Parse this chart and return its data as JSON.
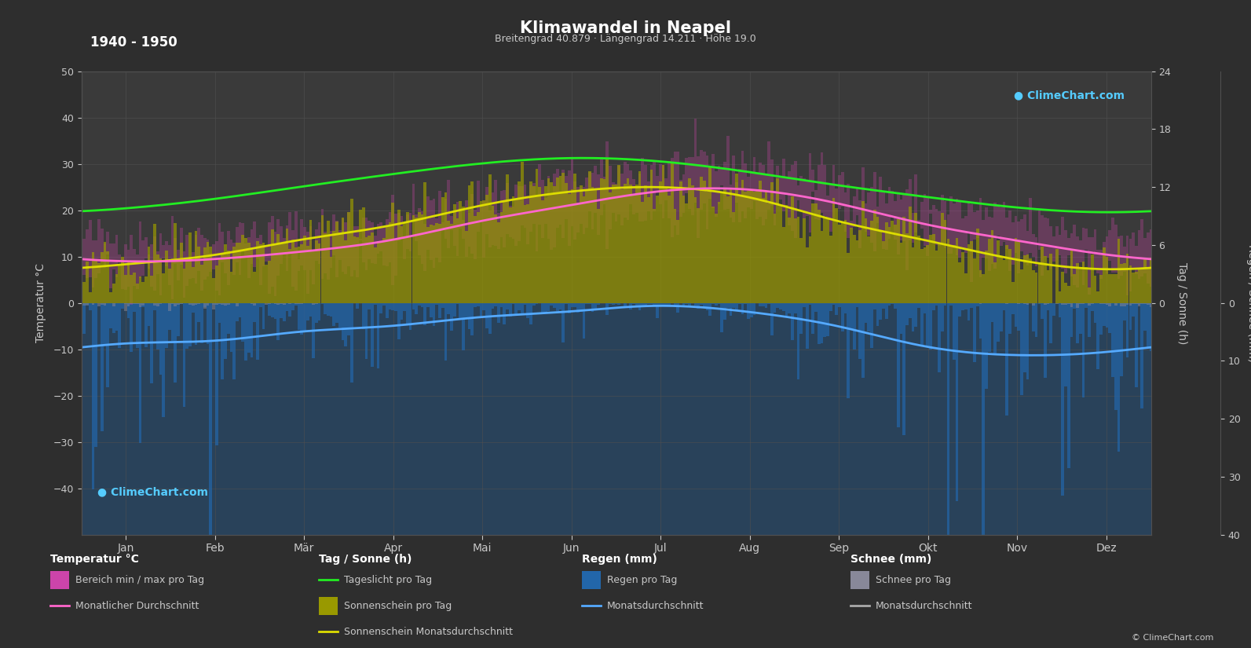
{
  "title": "Klimawandel in Neapel",
  "subtitle": "Breitengrad 40.879 · Längengrad 14.211 · Höhe 19.0",
  "year_range": "1940 - 1950",
  "bg_color": "#2e2e2e",
  "plot_bg_color": "#3a3a3a",
  "grid_color": "#505050",
  "text_color": "#c8c8c8",
  "months": [
    "Jan",
    "Feb",
    "Mär",
    "Apr",
    "Mai",
    "Jun",
    "Jul",
    "Aug",
    "Sep",
    "Okt",
    "Nov",
    "Dez"
  ],
  "temp_ylim": [
    -50,
    50
  ],
  "temp_avg": [
    9.0,
    9.5,
    11.0,
    13.5,
    17.5,
    21.0,
    24.0,
    24.5,
    21.5,
    17.0,
    13.5,
    10.5
  ],
  "temp_max_avg": [
    14.0,
    14.5,
    16.0,
    18.5,
    22.5,
    26.5,
    29.5,
    30.0,
    26.5,
    22.0,
    18.0,
    15.0
  ],
  "temp_min_avg": [
    5.0,
    5.5,
    7.0,
    9.5,
    13.0,
    16.5,
    19.0,
    19.5,
    17.0,
    13.0,
    9.5,
    6.5
  ],
  "daylight": [
    9.8,
    10.8,
    12.0,
    13.3,
    14.4,
    15.0,
    14.7,
    13.6,
    12.2,
    11.0,
    9.9,
    9.4
  ],
  "sunshine_avg": [
    4.0,
    5.0,
    6.5,
    8.0,
    10.0,
    11.5,
    12.0,
    11.0,
    8.5,
    6.5,
    4.5,
    3.5
  ],
  "rain_monthly_avg": [
    7.0,
    6.5,
    5.0,
    4.0,
    2.5,
    1.5,
    0.5,
    1.5,
    4.0,
    7.5,
    9.0,
    8.5
  ],
  "snow_monthly_avg": [
    0.5,
    0.3,
    0.1,
    0.0,
    0.0,
    0.0,
    0.0,
    0.0,
    0.0,
    0.0,
    0.1,
    0.3
  ],
  "temp_color": "#ff66cc",
  "temp_fill_color": "#cc44aa",
  "daylight_color": "#22ee22",
  "sunshine_color": "#dddd00",
  "sunshine_fill_color": "#999900",
  "rain_color": "#55aaff",
  "rain_fill_color": "#2266aa",
  "snow_fill_color": "#888899"
}
